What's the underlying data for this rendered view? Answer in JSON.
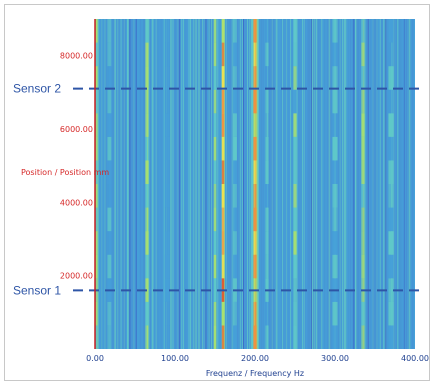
{
  "chart_data": {
    "type": "heatmap",
    "title": "",
    "xlabel": "Frequenz / Frequency  Hz",
    "ylabel": "Position / Position  mm",
    "xlim": [
      0,
      400
    ],
    "ylim": [
      0,
      9000
    ],
    "x_ticks": [
      "0.00",
      "100.00",
      "200.00",
      "300.00",
      "400.00"
    ],
    "x_tick_values": [
      0,
      100,
      200,
      300,
      400
    ],
    "y_ticks": [
      "2000.00",
      "4000.00",
      "6000.00",
      "8000.00"
    ],
    "y_tick_values": [
      2000,
      4000,
      6000,
      8000
    ],
    "colormap": [
      "#3a64c8",
      "#46a0d8",
      "#5fc8c8",
      "#a8e070",
      "#f0e050",
      "#f09040",
      "#e04a2a"
    ],
    "background_color": "#4a78cc",
    "dominant_bands": [
      {
        "frequency": 2,
        "intensity": 0.55,
        "width": 3
      },
      {
        "frequency": 18,
        "intensity": 0.3,
        "width": 6
      },
      {
        "frequency": 65,
        "intensity": 0.55,
        "width": 5
      },
      {
        "frequency": 90,
        "intensity": 0.25,
        "width": 8
      },
      {
        "frequency": 150,
        "intensity": 0.5,
        "width": 4
      },
      {
        "frequency": 160,
        "intensity": 0.95,
        "width": 4
      },
      {
        "frequency": 175,
        "intensity": 0.3,
        "width": 6
      },
      {
        "frequency": 200,
        "intensity": 0.9,
        "width": 5
      },
      {
        "frequency": 215,
        "intensity": 0.35,
        "width": 5
      },
      {
        "frequency": 250,
        "intensity": 0.45,
        "width": 5
      },
      {
        "frequency": 300,
        "intensity": 0.3,
        "width": 8
      },
      {
        "frequency": 335,
        "intensity": 0.55,
        "width": 5
      },
      {
        "frequency": 370,
        "intensity": 0.3,
        "width": 8
      }
    ],
    "sensors": [
      {
        "label": "Sensor 2",
        "position": 7100
      },
      {
        "label": "Sensor 1",
        "position": 1600
      }
    ],
    "sensor_line_color": "#2e55a6"
  }
}
